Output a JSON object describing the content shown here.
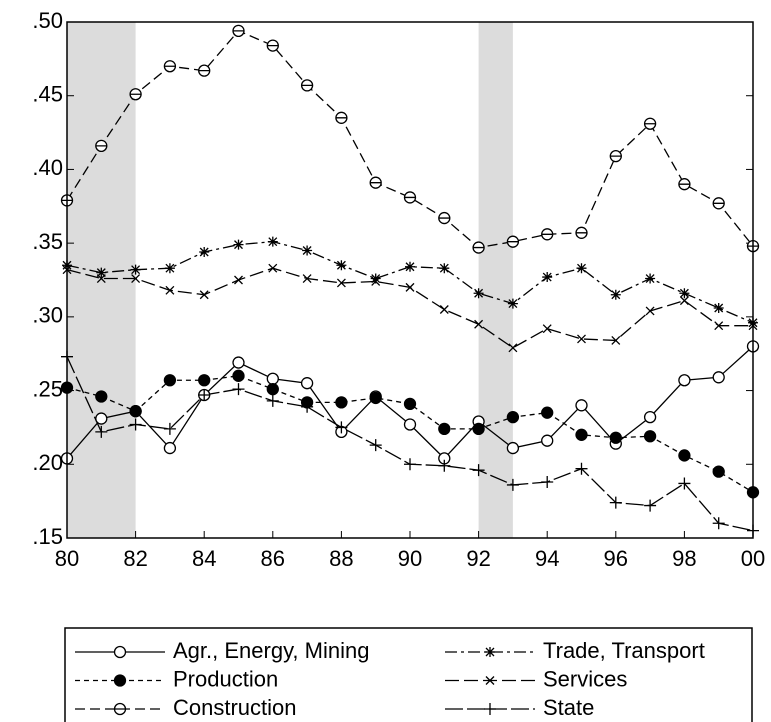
{
  "chart_data": {
    "type": "line",
    "x": [
      1980,
      1981,
      1982,
      1983,
      1984,
      1985,
      1986,
      1987,
      1988,
      1989,
      1990,
      1991,
      1992,
      1993,
      1994,
      1995,
      1996,
      1997,
      1998,
      1999,
      2000
    ],
    "series": [
      {
        "name": "Agr., Energy, Mining",
        "color": "#000000",
        "dash": "none",
        "marker": "open-circle",
        "values": [
          0.204,
          0.231,
          0.236,
          0.211,
          0.247,
          0.269,
          0.258,
          0.255,
          0.222,
          0.246,
          0.227,
          0.204,
          0.229,
          0.211,
          0.216,
          0.24,
          0.214,
          0.232,
          0.257,
          0.259,
          0.28
        ]
      },
      {
        "name": "Trade, Transport",
        "color": "#000000",
        "dash": "12 4 3 4",
        "marker": "star",
        "values": [
          0.335,
          0.33,
          0.332,
          0.333,
          0.344,
          0.349,
          0.351,
          0.345,
          0.335,
          0.326,
          0.334,
          0.333,
          0.316,
          0.309,
          0.327,
          0.333,
          0.315,
          0.326,
          0.316,
          0.306,
          0.296
        ]
      },
      {
        "name": "Production",
        "color": "#000000",
        "dash": "5 4",
        "marker": "filled-circle",
        "values": [
          0.252,
          0.246,
          0.236,
          0.257,
          0.257,
          0.26,
          0.251,
          0.242,
          0.242,
          0.245,
          0.241,
          0.224,
          0.224,
          0.232,
          0.235,
          0.22,
          0.218,
          0.219,
          0.206,
          0.195,
          0.181
        ]
      },
      {
        "name": "Services",
        "color": "#000000",
        "dash": "14 5",
        "marker": "cross",
        "values": [
          0.332,
          0.326,
          0.326,
          0.318,
          0.315,
          0.325,
          0.333,
          0.326,
          0.323,
          0.324,
          0.32,
          0.305,
          0.295,
          0.279,
          0.292,
          0.285,
          0.284,
          0.304,
          0.311,
          0.294,
          0.294
        ]
      },
      {
        "name": "Construction",
        "color": "#000000",
        "dash": "10 5",
        "marker": "circle-bar",
        "values": [
          0.379,
          0.416,
          0.451,
          0.47,
          0.467,
          0.494,
          0.484,
          0.457,
          0.435,
          0.391,
          0.381,
          0.367,
          0.347,
          0.351,
          0.356,
          0.357,
          0.409,
          0.431,
          0.39,
          0.377,
          0.348
        ]
      },
      {
        "name": "State",
        "color": "#000000",
        "dash": "18 4",
        "marker": "plus",
        "values": [
          0.273,
          0.222,
          0.227,
          0.224,
          0.247,
          0.251,
          0.243,
          0.239,
          0.225,
          0.213,
          0.2,
          0.199,
          0.196,
          0.186,
          0.188,
          0.197,
          0.174,
          0.172,
          0.187,
          0.16,
          0.155
        ]
      }
    ],
    "shaded": [
      [
        1980,
        1982
      ],
      [
        1992,
        1993
      ]
    ],
    "shade_color": "#dcdcdc",
    "xlim": [
      1980,
      2000
    ],
    "xticks": [
      {
        "value": 1980,
        "label": "80"
      },
      {
        "value": 1982,
        "label": "82"
      },
      {
        "value": 1984,
        "label": "84"
      },
      {
        "value": 1986,
        "label": "86"
      },
      {
        "value": 1988,
        "label": "88"
      },
      {
        "value": 1990,
        "label": "90"
      },
      {
        "value": 1992,
        "label": "92"
      },
      {
        "value": 1994,
        "label": "94"
      },
      {
        "value": 1996,
        "label": "96"
      },
      {
        "value": 1998,
        "label": "98"
      },
      {
        "value": 2000,
        "label": "00"
      }
    ],
    "ylim": [
      0.15,
      0.5
    ],
    "yticks": [
      {
        "value": 0.15,
        "label": ".15"
      },
      {
        "value": 0.2,
        "label": ".20"
      },
      {
        "value": 0.25,
        "label": ".25"
      },
      {
        "value": 0.3,
        "label": ".30"
      },
      {
        "value": 0.35,
        "label": ".35"
      },
      {
        "value": 0.4,
        "label": ".40"
      },
      {
        "value": 0.45,
        "label": ".45"
      },
      {
        "value": 0.5,
        "label": ".50"
      }
    ],
    "legend": "bottom"
  }
}
